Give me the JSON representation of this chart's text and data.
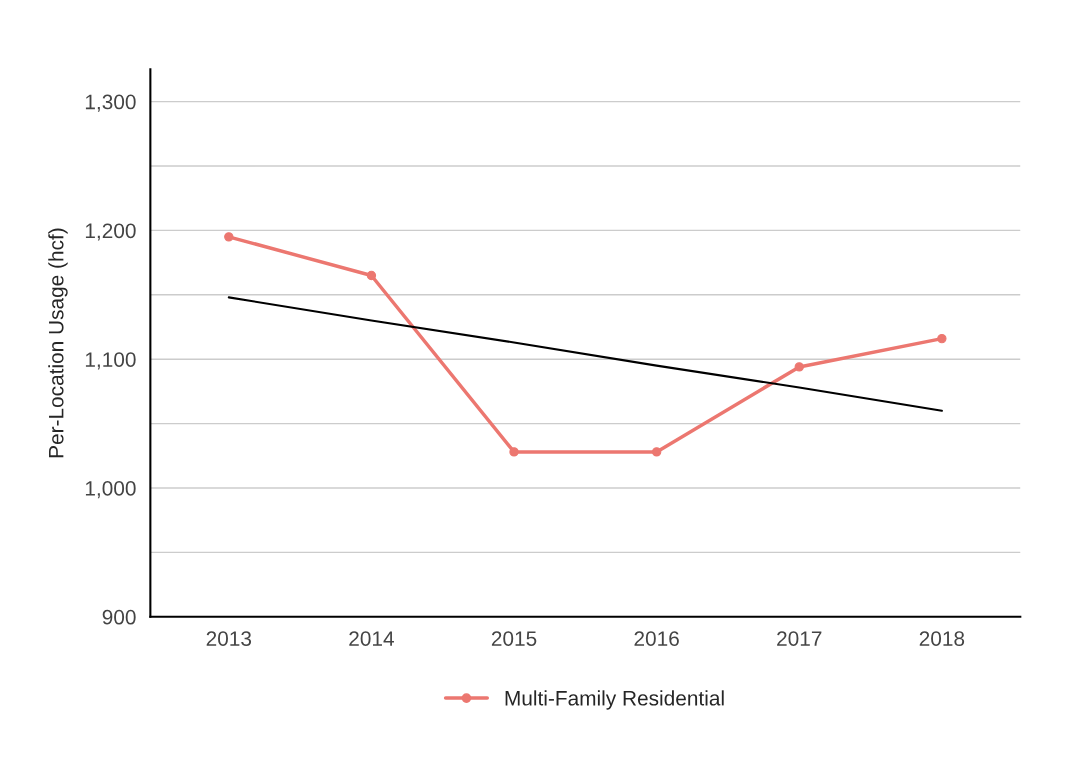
{
  "chart_data": {
    "type": "line",
    "ylabel": "Per-Location Usage (hcf)",
    "categories": [
      "2013",
      "2014",
      "2015",
      "2016",
      "2017",
      "2018"
    ],
    "series": [
      {
        "name": "Multi-Family Residential",
        "color": "#ec7770",
        "values": [
          1195,
          1165,
          1028,
          1028,
          1094,
          1116
        ],
        "marker": "circle"
      },
      {
        "color": "#000000",
        "values": [
          1148,
          1130,
          1113,
          1095,
          1078,
          1060
        ],
        "marker": "none"
      }
    ],
    "ylim": [
      900,
      1325
    ],
    "yticks": [
      900,
      {
        "value": 950,
        "label": null
      },
      {
        "value": 1000,
        "label": "1,000"
      },
      {
        "value": 1050,
        "label": null
      },
      {
        "value": 1100,
        "label": "1,100"
      },
      {
        "value": 1150,
        "label": null
      },
      {
        "value": 1200,
        "label": "1,200"
      },
      {
        "value": 1250,
        "label": null
      },
      {
        "value": 1300,
        "label": "1,300"
      }
    ],
    "grid": "y",
    "legend": "bottom",
    "line_style": "solid"
  }
}
